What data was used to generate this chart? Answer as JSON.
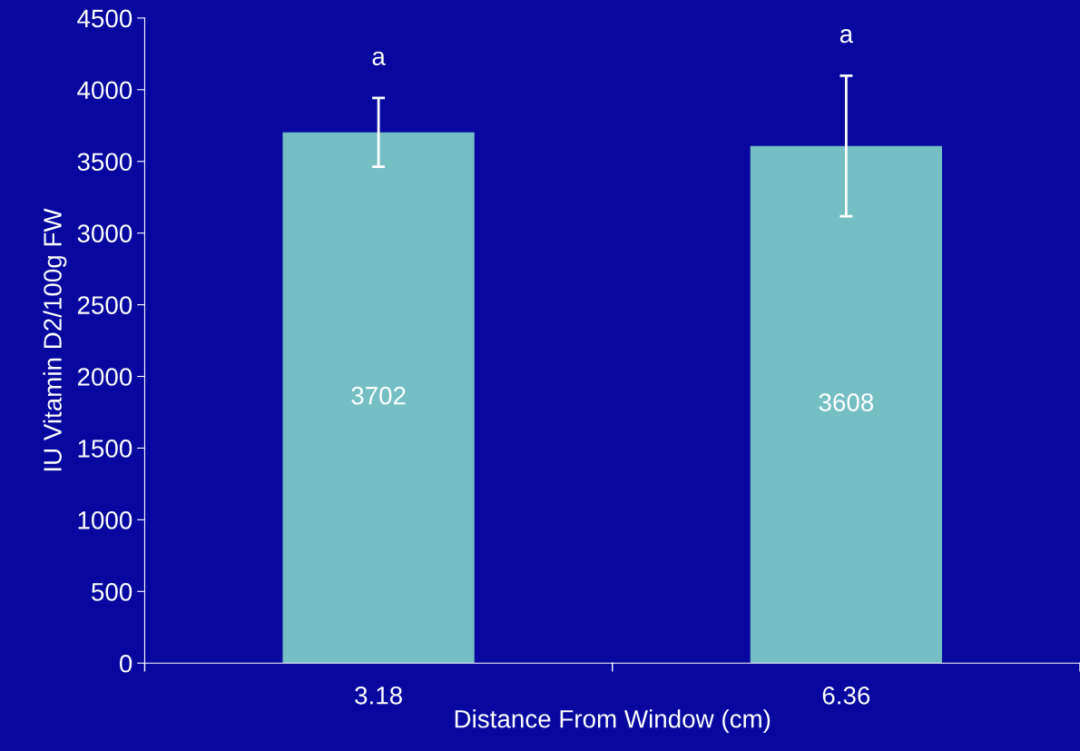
{
  "chart_data": {
    "type": "bar",
    "categories": [
      "3.18",
      "6.36"
    ],
    "values": [
      3702,
      3608
    ],
    "errors": [
      240,
      490
    ],
    "color": "#75bfc4",
    "xlabel": "Distance From Window (cm)",
    "ylabel": "IU Vitamin D2/100g FW",
    "ylim": [
      0,
      4500
    ],
    "yticks": [
      0,
      500,
      1000,
      1500,
      2000,
      2500,
      3000,
      3500,
      4000,
      4500
    ],
    "data_labels": true,
    "grid": false,
    "annotations": [
      "a",
      "a"
    ]
  }
}
